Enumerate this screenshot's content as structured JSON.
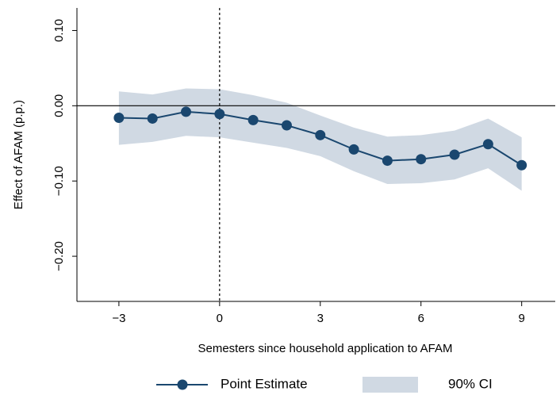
{
  "chart_data": {
    "type": "line",
    "xlabel": "Semesters since household application to AFAM",
    "ylabel": "Effect of AFAM (p.p.)",
    "x": [
      -3,
      -2,
      -1,
      0,
      1,
      2,
      3,
      4,
      5,
      6,
      7,
      8,
      9
    ],
    "series": [
      {
        "name": "Point Estimate",
        "color": "#1a476f",
        "values": [
          -0.016,
          -0.017,
          -0.008,
          -0.011,
          -0.019,
          -0.026,
          -0.039,
          -0.058,
          -0.073,
          -0.071,
          -0.065,
          -0.051,
          -0.079
        ]
      }
    ],
    "band": {
      "name": "90% CI",
      "color": "#d0d9e3",
      "upper": [
        0.019,
        0.015,
        0.023,
        0.022,
        0.014,
        0.004,
        -0.013,
        -0.029,
        -0.041,
        -0.039,
        -0.033,
        -0.017,
        -0.042
      ],
      "lower": [
        -0.052,
        -0.048,
        -0.04,
        -0.042,
        -0.049,
        -0.056,
        -0.067,
        -0.087,
        -0.104,
        -0.103,
        -0.098,
        -0.083,
        -0.113
      ]
    },
    "xlim": [
      -4.25,
      10
    ],
    "ylim": [
      -0.26,
      0.13
    ],
    "xticks": [
      {
        "value": -3,
        "label": "−3"
      },
      0,
      3,
      6,
      9
    ],
    "yticks": [
      {
        "value": 0.1,
        "label": "0.10"
      },
      {
        "value": 0,
        "label": "0.00"
      },
      {
        "value": -0.1,
        "label": "−0.10"
      },
      {
        "value": -0.2,
        "label": "−0.20"
      }
    ],
    "hline": 0,
    "vline": 0,
    "legend": "bottom"
  }
}
